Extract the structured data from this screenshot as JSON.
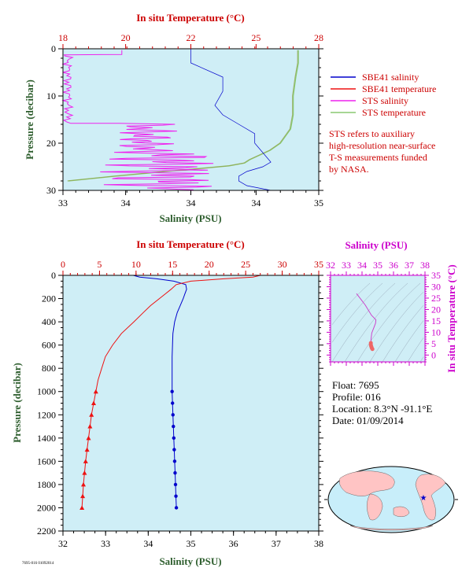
{
  "colors": {
    "plot_bg": "#cfeef6",
    "salinity": "#0000cc",
    "temperature": "#ee1111",
    "sts_salinity": "#ee22ee",
    "sts_temperature": "#88c870",
    "axis_red": "#cc0000",
    "axis_mag": "#cc00cc",
    "axis_green": "#2e5e2e",
    "land": "#ffc4c4",
    "ocean": "#c8eefa"
  },
  "footer_code": "7695-016 01092014",
  "legend": {
    "items": [
      {
        "label": "SBE41 salinity",
        "color": "#0000cc"
      },
      {
        "label": "SBE41 temperature",
        "color": "#ee1111"
      },
      {
        "label": "STS salinity",
        "color": "#ee22ee"
      },
      {
        "label": "STS temperature",
        "color": "#88c870"
      }
    ],
    "note": [
      "STS refers to auxiliary",
      "high-resolution near-surface",
      "T-S measurements funded",
      "by NASA."
    ]
  },
  "info": {
    "float": "Float:  7695",
    "profile": "Profile:  016",
    "location": "Location:  8.3°N  -91.1°E",
    "date": "Date:  01/09/2014"
  },
  "chart_data": [
    {
      "type": "line",
      "panel": "near-surface",
      "top_label": "In situ Temperature (°C)",
      "xlabel": "Salinity (PSU)",
      "ylabel": "Pressure (decibar)",
      "top_ticks": [
        "18",
        "20",
        "22",
        "25",
        "28"
      ],
      "bottom_ticks": [
        "33",
        "34",
        "33",
        "34",
        "33",
        "34",
        "35"
      ],
      "y_ticks": [
        "0",
        "10",
        "20",
        "30"
      ],
      "ylim": [
        0,
        30
      ],
      "series": [
        {
          "name": "STS temperature",
          "pressure": [
            0.3,
            1,
            3,
            6,
            10,
            14,
            17,
            20,
            21.5,
            22.5,
            23.5,
            24.2,
            24.8,
            25.3,
            26,
            27,
            28
          ],
          "value": [
            27.2,
            27.2,
            27.2,
            27.1,
            27,
            27,
            26.9,
            26.5,
            26.1,
            25.7,
            25.3,
            25.1,
            24.5,
            23.5,
            22.0,
            20.0,
            18.2
          ]
        },
        {
          "name": "SBE41 salinity",
          "pressure": [
            0,
            3,
            6,
            9,
            12,
            14,
            16,
            18,
            20,
            22,
            24,
            25,
            26,
            27,
            28,
            29,
            30
          ],
          "value": [
            34.0,
            34.0,
            34.2,
            34.2,
            34.15,
            34.2,
            34.3,
            34.4,
            34.4,
            34.45,
            34.5,
            34.45,
            34.35,
            34.3,
            34.3,
            34.35,
            34.5
          ]
        }
      ]
    },
    {
      "type": "line",
      "panel": "full-depth",
      "top_label": "In situ Temperature (°C)",
      "xlabel": "Salinity (PSU)",
      "ylabel": "Pressure (decibar)",
      "x_ticks": [
        "32",
        "33",
        "34",
        "35",
        "36",
        "37",
        "38"
      ],
      "top_ticks": [
        "0",
        "5",
        "10",
        "15",
        "20",
        "25",
        "30",
        "35"
      ],
      "y_ticks": [
        "0",
        "200",
        "400",
        "600",
        "800",
        "1000",
        "1200",
        "1400",
        "1600",
        "1800",
        "2000",
        "2200"
      ],
      "xlim": [
        32,
        38
      ],
      "temp_lim": [
        0,
        35
      ],
      "ylim": [
        0,
        2200
      ],
      "series": [
        {
          "name": "SBE41 salinity",
          "pressure": [
            0,
            15,
            30,
            50,
            80,
            120,
            160,
            200,
            260,
            320,
            400,
            500,
            600,
            700,
            800,
            900,
            1000,
            1100,
            1200,
            1300,
            1400,
            1500,
            1600,
            1700,
            1800,
            1900,
            2000
          ],
          "value": [
            33.65,
            33.8,
            34.2,
            34.6,
            34.88,
            34.9,
            34.86,
            34.82,
            34.75,
            34.68,
            34.62,
            34.58,
            34.57,
            34.56,
            34.56,
            34.56,
            34.56,
            34.57,
            34.58,
            34.59,
            34.6,
            34.61,
            34.62,
            34.63,
            34.64,
            34.65,
            34.66
          ]
        },
        {
          "name": "SBE41 temperature",
          "pressure": [
            0,
            15,
            30,
            50,
            80,
            120,
            160,
            200,
            260,
            320,
            400,
            500,
            600,
            700,
            800,
            900,
            1000,
            1100,
            1200,
            1300,
            1400,
            1500,
            1600,
            1700,
            1800,
            1900,
            2000
          ],
          "value": [
            27,
            26,
            22,
            17.5,
            15.5,
            14.8,
            14.0,
            13.2,
            12.0,
            11.0,
            9.7,
            8.0,
            6.8,
            5.8,
            5.3,
            4.8,
            4.5,
            4.2,
            3.9,
            3.7,
            3.5,
            3.3,
            3.1,
            2.95,
            2.8,
            2.7,
            2.6
          ]
        }
      ]
    },
    {
      "type": "scatter",
      "panel": "t-s-diagram",
      "top_label": "Salinity (PSU)",
      "right_label": "In situ Temperature (°C)",
      "x_ticks": [
        "32",
        "33",
        "34",
        "35",
        "36",
        "37",
        "38"
      ],
      "y_ticks": [
        "0",
        "5",
        "10",
        "15",
        "20",
        "25",
        "30",
        "35"
      ],
      "xlim": [
        32,
        38
      ],
      "ylim": [
        -3,
        35
      ],
      "series": [
        {
          "name": "profile",
          "salinity": [
            33.65,
            34.2,
            34.6,
            34.88,
            34.86,
            34.75,
            34.62,
            34.57,
            34.56,
            34.56,
            34.58,
            34.6,
            34.62,
            34.66
          ],
          "temperature": [
            27,
            22,
            17.5,
            15.5,
            14.0,
            12.0,
            9.7,
            6.8,
            5.3,
            4.5,
            3.9,
            3.5,
            3.1,
            2.6
          ]
        }
      ]
    }
  ]
}
